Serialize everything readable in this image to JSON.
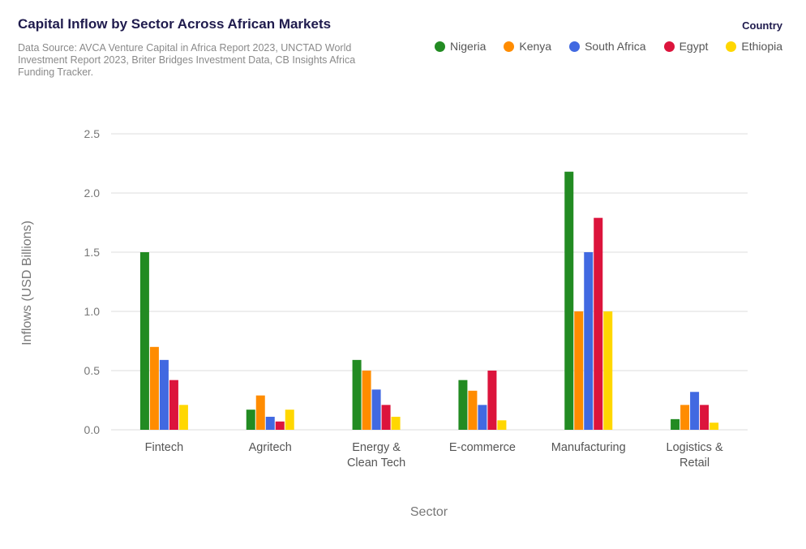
{
  "chart_data": {
    "type": "bar",
    "title": "Capital Inflow by Sector Across African Markets",
    "subtitle": "Data Source: AVCA Venture Capital in Africa Report 2023, UNCTAD World Investment Report 2023, Briter Bridges Investment Data, CB Insights Africa Funding Tracker.",
    "xlabel": "Sector",
    "ylabel": "Inflows (USD Billions)",
    "ylim": [
      0,
      2.5
    ],
    "yticks": [
      "0.0",
      "0.5",
      "1.0",
      "1.5",
      "2.0",
      "2.5"
    ],
    "grid": true,
    "legend_title": "Country",
    "legend_position": "top-right",
    "categories": [
      [
        "Fintech"
      ],
      [
        "Agritech"
      ],
      [
        "Energy &",
        "Clean Tech"
      ],
      [
        "E-commerce"
      ],
      [
        "Manufacturing"
      ],
      [
        "Logistics &",
        "Retail"
      ]
    ],
    "series": [
      {
        "name": "Nigeria",
        "color": "#228b22",
        "values": [
          1.5,
          0.17,
          0.59,
          0.42,
          2.18,
          0.09
        ]
      },
      {
        "name": "Kenya",
        "color": "#ff8c00",
        "values": [
          0.7,
          0.29,
          0.5,
          0.33,
          1.0,
          0.21
        ]
      },
      {
        "name": "South Africa",
        "color": "#4169e1",
        "values": [
          0.59,
          0.11,
          0.34,
          0.21,
          1.5,
          0.32
        ]
      },
      {
        "name": "Egypt",
        "color": "#dc143c",
        "values": [
          0.42,
          0.07,
          0.21,
          0.5,
          1.79,
          0.21
        ]
      },
      {
        "name": "Ethiopia",
        "color": "#ffd700",
        "values": [
          0.21,
          0.17,
          0.11,
          0.08,
          1.0,
          0.06
        ]
      }
    ]
  }
}
